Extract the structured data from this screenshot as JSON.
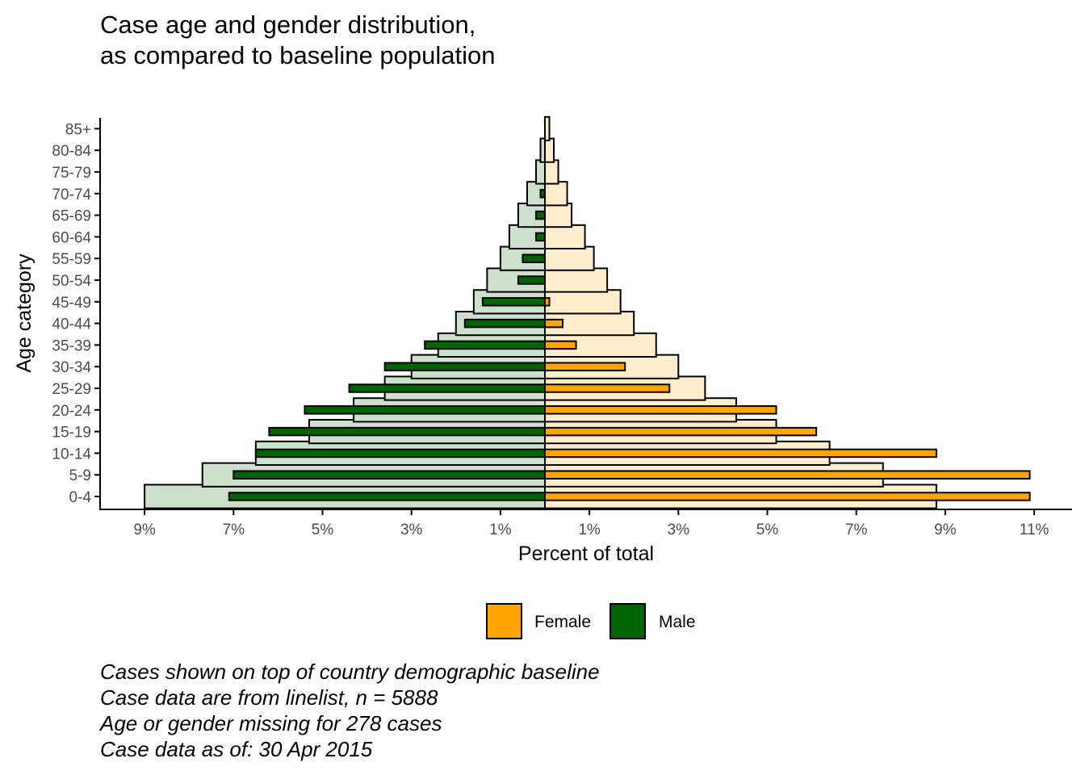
{
  "chart_data": {
    "type": "bar",
    "orientation": "horizontal",
    "title": "Case age and gender distribution,\nas compared to baseline population",
    "xlabel": "Percent of total",
    "ylabel": "Age category",
    "categories": [
      "0-4",
      "5-9",
      "10-14",
      "15-19",
      "20-24",
      "25-29",
      "30-34",
      "35-39",
      "40-44",
      "45-49",
      "50-54",
      "55-59",
      "60-64",
      "65-69",
      "70-74",
      "75-79",
      "80-84",
      "85+"
    ],
    "x_tick_labels": [
      "9%",
      "7%",
      "5%",
      "3%",
      "1%",
      "1%",
      "3%",
      "5%",
      "7%",
      "9%",
      "11%"
    ],
    "x_tick_values": [
      -9,
      -7,
      -5,
      -3,
      -1,
      1,
      3,
      5,
      7,
      9,
      11
    ],
    "xlim": [
      -10,
      11.6
    ],
    "baseline": {
      "female": [
        8.8,
        7.6,
        6.4,
        5.2,
        4.3,
        3.6,
        3.0,
        2.5,
        2.0,
        1.7,
        1.4,
        1.1,
        0.9,
        0.6,
        0.5,
        0.3,
        0.2,
        0.1
      ],
      "male": [
        9.0,
        7.7,
        6.5,
        5.3,
        4.3,
        3.6,
        3.0,
        2.4,
        2.0,
        1.6,
        1.3,
        1.0,
        0.8,
        0.6,
        0.4,
        0.2,
        0.1,
        0.0
      ],
      "female_color": "#ffedcc",
      "male_color": "#cce0cc"
    },
    "series": [
      {
        "name": "Female",
        "color": "#ffa500",
        "values": [
          10.9,
          10.9,
          8.8,
          6.1,
          5.2,
          2.8,
          1.8,
          0.7,
          0.4,
          0.1,
          0,
          0,
          0,
          0,
          0,
          0,
          0,
          0
        ]
      },
      {
        "name": "Male",
        "color": "#006400",
        "values": [
          7.1,
          7.0,
          6.5,
          6.2,
          5.4,
          4.4,
          3.6,
          2.7,
          1.8,
          1.4,
          0.6,
          0.5,
          0.2,
          0.2,
          0.1,
          0,
          0,
          0
        ]
      }
    ],
    "legend_position": "bottom",
    "grid": false
  },
  "caption": [
    "Cases shown on top of country demographic baseline",
    "Case data are from linelist, n = 5888",
    "Age or gender missing for 278 cases",
    "Case data as of: 30 Apr 2015"
  ]
}
